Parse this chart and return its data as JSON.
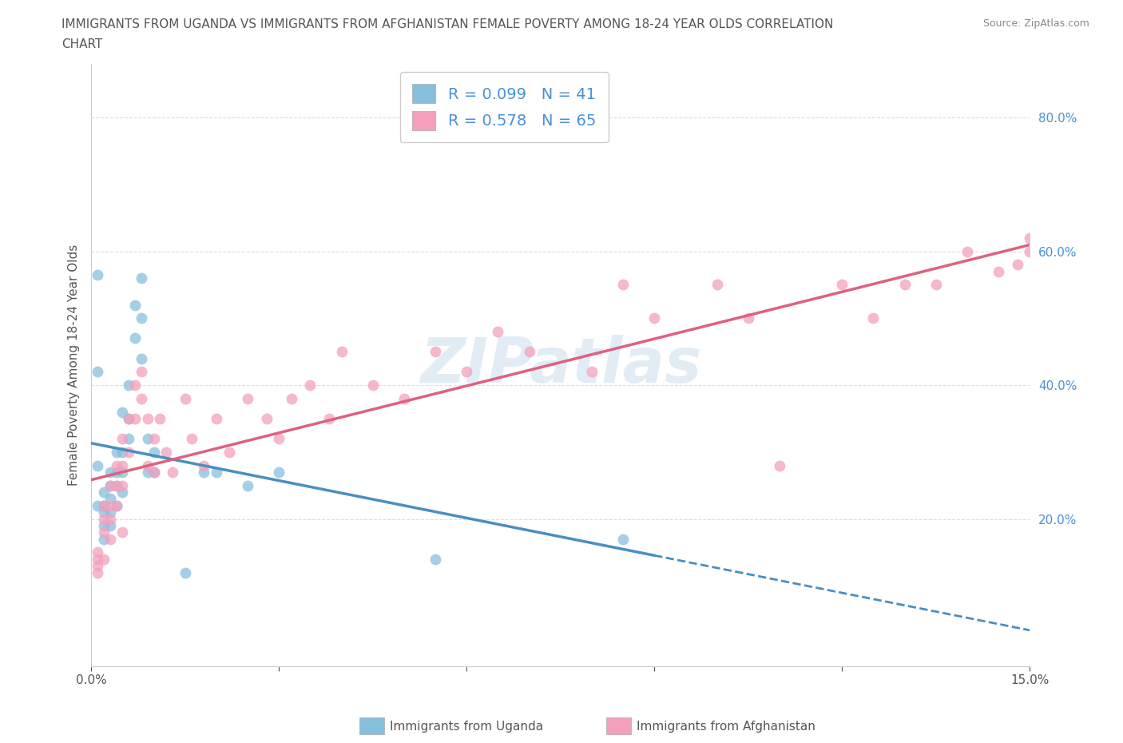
{
  "title_line1": "IMMIGRANTS FROM UGANDA VS IMMIGRANTS FROM AFGHANISTAN FEMALE POVERTY AMONG 18-24 YEAR OLDS CORRELATION",
  "title_line2": "CHART",
  "source": "Source: ZipAtlas.com",
  "ylabel": "Female Poverty Among 18-24 Year Olds",
  "xlabel_uganda": "Immigrants from Uganda",
  "xlabel_afghanistan": "Immigrants from Afghanistan",
  "watermark": "ZIPatlas",
  "legend_uganda_R": "0.099",
  "legend_uganda_N": "41",
  "legend_afghanistan_R": "0.578",
  "legend_afghanistan_N": "65",
  "xlim": [
    0.0,
    0.15
  ],
  "ylim": [
    -0.02,
    0.88
  ],
  "xticks": [
    0.0,
    0.03,
    0.06,
    0.09,
    0.12,
    0.15
  ],
  "yticks": [
    0.2,
    0.4,
    0.6,
    0.8
  ],
  "ytick_labels": [
    "20.0%",
    "40.0%",
    "60.0%",
    "80.0%"
  ],
  "xtick_labels_ends": [
    "0.0%",
    "15.0%"
  ],
  "color_uganda": "#87bfde",
  "color_afghanistan": "#f4a0bc",
  "trendline_uganda_color": "#4a8fc0",
  "trendline_afghanistan_color": "#e06080",
  "trendline_uganda_solid_end": 0.09,
  "uganda_x": [
    0.001,
    0.001,
    0.001,
    0.001,
    0.002,
    0.002,
    0.002,
    0.002,
    0.002,
    0.003,
    0.003,
    0.003,
    0.003,
    0.003,
    0.004,
    0.004,
    0.004,
    0.004,
    0.005,
    0.005,
    0.005,
    0.005,
    0.006,
    0.006,
    0.006,
    0.007,
    0.007,
    0.008,
    0.008,
    0.008,
    0.009,
    0.009,
    0.01,
    0.01,
    0.015,
    0.018,
    0.02,
    0.025,
    0.03,
    0.055,
    0.085
  ],
  "uganda_y": [
    0.565,
    0.42,
    0.28,
    0.22,
    0.24,
    0.22,
    0.21,
    0.19,
    0.17,
    0.27,
    0.25,
    0.23,
    0.21,
    0.19,
    0.3,
    0.27,
    0.25,
    0.22,
    0.36,
    0.3,
    0.27,
    0.24,
    0.4,
    0.35,
    0.32,
    0.52,
    0.47,
    0.56,
    0.5,
    0.44,
    0.32,
    0.27,
    0.3,
    0.27,
    0.12,
    0.27,
    0.27,
    0.25,
    0.27,
    0.14,
    0.17
  ],
  "afghanistan_x": [
    0.001,
    0.001,
    0.001,
    0.001,
    0.002,
    0.002,
    0.002,
    0.002,
    0.003,
    0.003,
    0.003,
    0.003,
    0.004,
    0.004,
    0.004,
    0.005,
    0.005,
    0.005,
    0.005,
    0.006,
    0.006,
    0.007,
    0.007,
    0.008,
    0.008,
    0.009,
    0.009,
    0.01,
    0.01,
    0.011,
    0.012,
    0.013,
    0.015,
    0.016,
    0.018,
    0.02,
    0.022,
    0.025,
    0.028,
    0.03,
    0.032,
    0.035,
    0.038,
    0.04,
    0.045,
    0.05,
    0.055,
    0.06,
    0.065,
    0.07,
    0.08,
    0.085,
    0.09,
    0.1,
    0.105,
    0.11,
    0.12,
    0.125,
    0.13,
    0.135,
    0.14,
    0.145,
    0.148,
    0.15,
    0.15
  ],
  "afghanistan_y": [
    0.15,
    0.14,
    0.13,
    0.12,
    0.22,
    0.2,
    0.18,
    0.14,
    0.25,
    0.22,
    0.2,
    0.17,
    0.28,
    0.25,
    0.22,
    0.32,
    0.28,
    0.25,
    0.18,
    0.35,
    0.3,
    0.4,
    0.35,
    0.42,
    0.38,
    0.35,
    0.28,
    0.32,
    0.27,
    0.35,
    0.3,
    0.27,
    0.38,
    0.32,
    0.28,
    0.35,
    0.3,
    0.38,
    0.35,
    0.32,
    0.38,
    0.4,
    0.35,
    0.45,
    0.4,
    0.38,
    0.45,
    0.42,
    0.48,
    0.45,
    0.42,
    0.55,
    0.5,
    0.55,
    0.5,
    0.28,
    0.55,
    0.5,
    0.55,
    0.55,
    0.6,
    0.57,
    0.58,
    0.6,
    0.62
  ],
  "background_color": "#ffffff",
  "grid_color": "#dddddd",
  "label_color": "#555555",
  "tick_color": "#4a90d9",
  "title_color": "#555555"
}
